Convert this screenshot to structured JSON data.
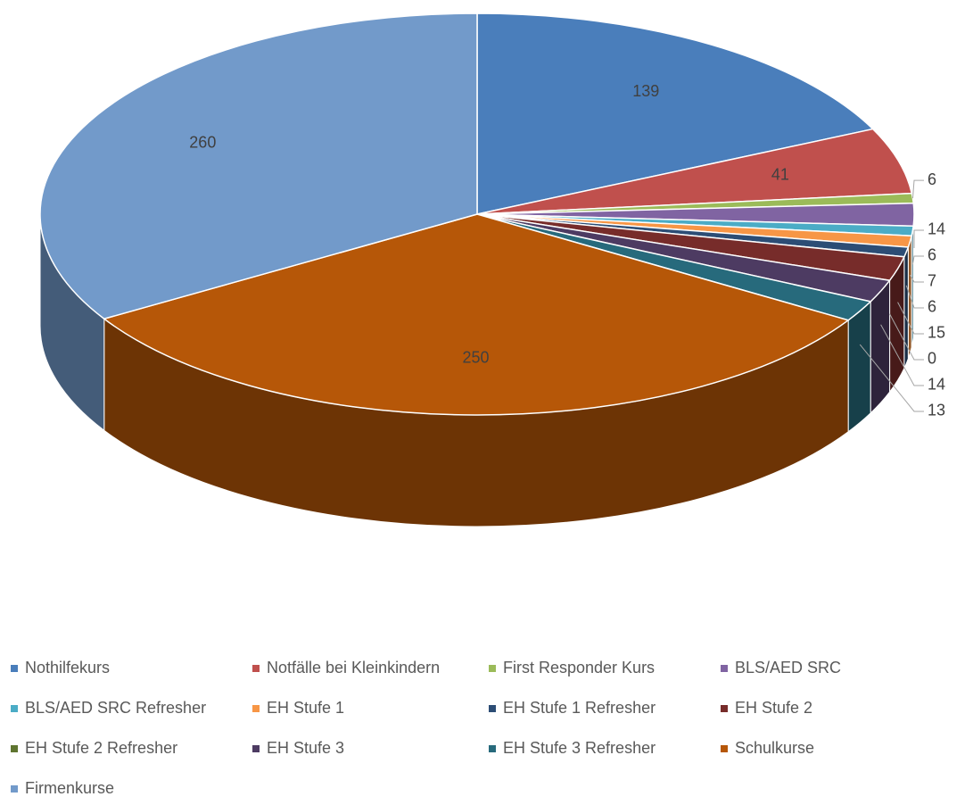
{
  "chart_data": {
    "type": "pie",
    "categories": [
      "Nothilfekurs",
      "Notfälle bei Kleinkindern",
      "First Responder Kurs",
      "BLS/AED SRC",
      "BLS/AED SRC Refresher",
      "EH Stufe 1",
      "EH Stufe 1 Refresher",
      "EH Stufe 2",
      "EH Stufe 2 Refresher",
      "EH Stufe 3",
      "EH Stufe 3 Refresher",
      "Schulkurse",
      "Firmenkurse"
    ],
    "values": [
      139,
      41,
      6,
      14,
      6,
      7,
      6,
      15,
      0,
      14,
      13,
      250,
      260
    ],
    "colors": [
      "#4a7ebb",
      "#c0504d",
      "#9bbb59",
      "#8064a2",
      "#4bacc6",
      "#f79646",
      "#2c4d75",
      "#772c2a",
      "#5f7530",
      "#4d3b62",
      "#276a7c",
      "#b65708",
      "#729aca"
    ],
    "legend": "bottom"
  }
}
